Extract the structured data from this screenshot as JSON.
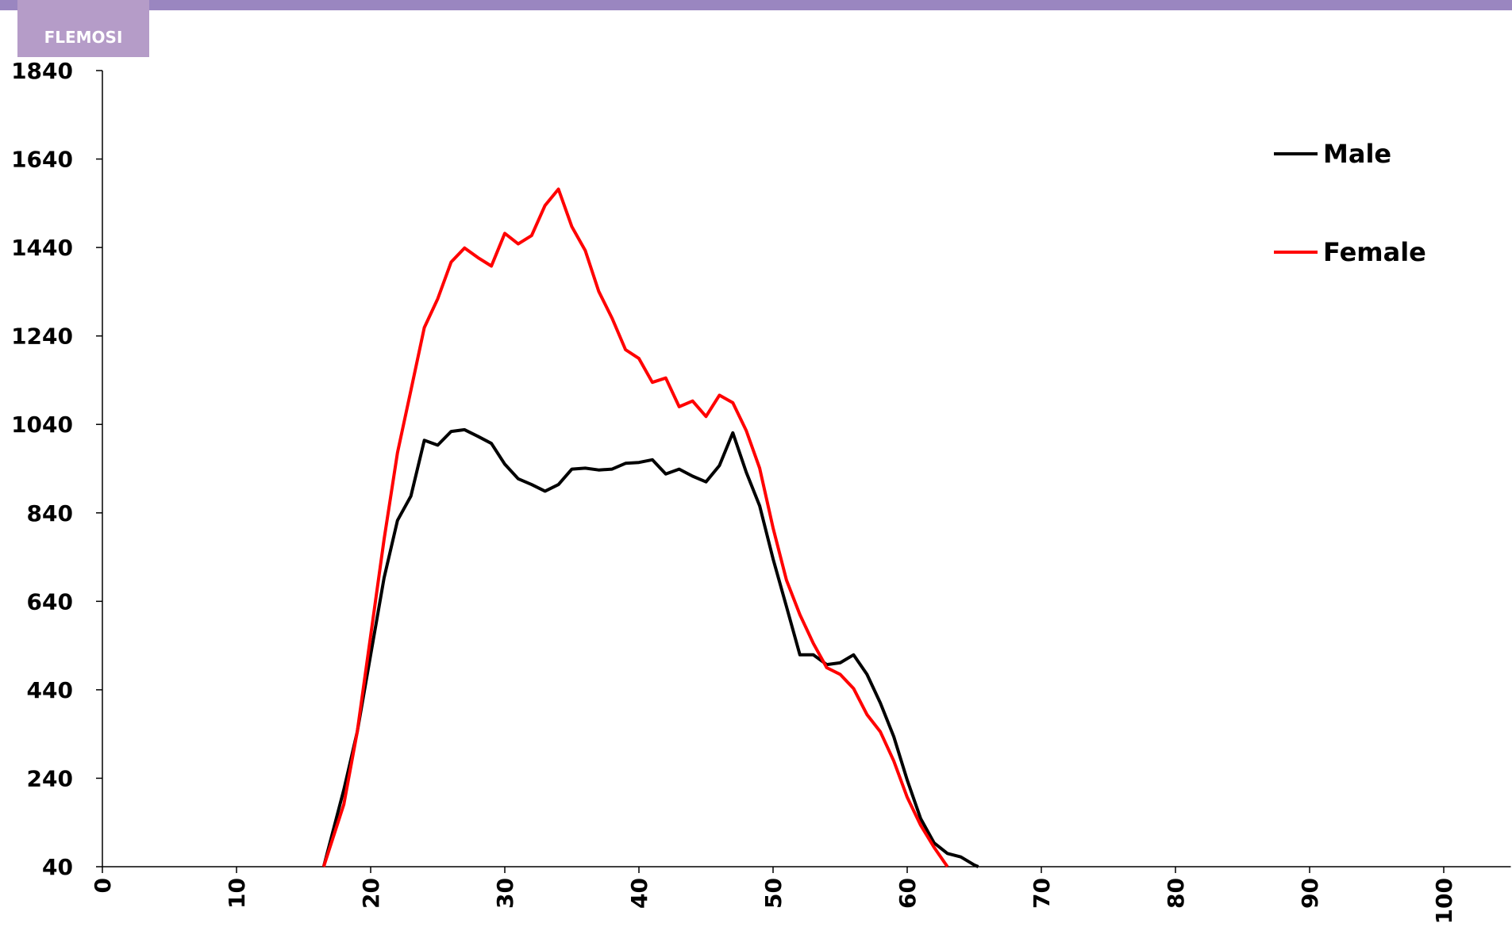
{
  "logo": "FLEMOSI",
  "chart_data": {
    "type": "line",
    "x": [
      16.5,
      18,
      19,
      20,
      21,
      22,
      23,
      24,
      25,
      26,
      27,
      28,
      29,
      30,
      31,
      32,
      33,
      34,
      35,
      36,
      37,
      38,
      39,
      40,
      41,
      42,
      43,
      44,
      45,
      46,
      47,
      48,
      49,
      50,
      51,
      52,
      53,
      54,
      55,
      56,
      57,
      58,
      59,
      60,
      61,
      62,
      63,
      64,
      65,
      65.3
    ],
    "series": [
      {
        "name": "Male",
        "color": "#000000",
        "values": [
          40,
          214,
          345,
          519,
          693,
          823,
          878,
          1004,
          993,
          1024,
          1028,
          1013,
          997,
          950,
          917,
          904,
          889,
          904,
          939,
          941,
          937,
          939,
          952,
          954,
          960,
          928,
          939,
          923,
          910,
          947,
          1021,
          932,
          856,
          736,
          628,
          519,
          519,
          497,
          501,
          519,
          475,
          410,
          334,
          236,
          149,
          94,
          70,
          62,
          44,
          40
        ]
      },
      {
        "name": "Female",
        "color": "#ff0000",
        "values": [
          40,
          181,
          345,
          562,
          780,
          976,
          1117,
          1259,
          1324,
          1407,
          1439,
          1417,
          1398,
          1472,
          1448,
          1467,
          1535,
          1572,
          1487,
          1433,
          1341,
          1280,
          1209,
          1189,
          1135,
          1145,
          1080,
          1093,
          1058,
          1106,
          1089,
          1026,
          941,
          806,
          688,
          610,
          545,
          490,
          475,
          443,
          384,
          345,
          279,
          197,
          134,
          84,
          40,
          null,
          null,
          null
        ]
      }
    ],
    "xlim": [
      0,
      105
    ],
    "xticks": [
      0,
      10,
      20,
      30,
      40,
      50,
      60,
      70,
      80,
      90,
      100
    ],
    "ylim": [
      40,
      1840
    ],
    "yticks": [
      40,
      240,
      440,
      640,
      840,
      1040,
      1240,
      1440,
      1640,
      1840
    ],
    "legend": "top-right"
  }
}
